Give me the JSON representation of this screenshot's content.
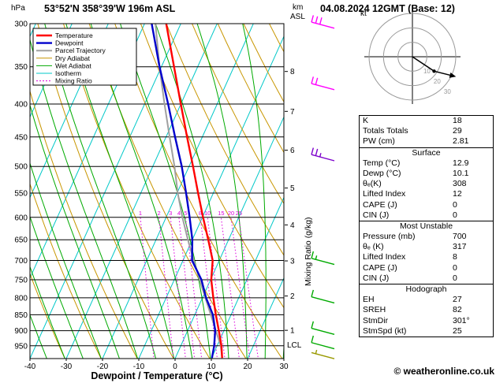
{
  "header": {
    "location": "53°52'N 358°39'W 196m ASL",
    "datetime": "04.08.2024 12GMT (Base: 12)",
    "pressure_unit": "hPa",
    "altitude_unit_line1": "km",
    "altitude_unit_line2": "ASL"
  },
  "chart_data": {
    "type": "skewt_logp_sounding",
    "x_axis_title": "Dewpoint / Temperature (°C)",
    "mixing_axis_title": "Mixing Ratio (g/kg)",
    "lcl_label": "LCL",
    "pressure_top_hpa": 300,
    "pressure_bottom_hpa": 1000,
    "pressure_ticks": [
      300,
      350,
      400,
      450,
      500,
      550,
      600,
      650,
      700,
      750,
      800,
      850,
      900,
      950
    ],
    "temp_ticks": [
      -40,
      -30,
      -20,
      -10,
      0,
      10,
      20,
      30
    ],
    "altitude_ticks_km": [
      1,
      2,
      3,
      4,
      5,
      6,
      7,
      8
    ],
    "isotherm_step_c": 10,
    "dry_adiabat_step_c": 10,
    "wet_adiabat_step_c": 5,
    "mixing_ratio_g_kg": [
      1,
      2,
      3,
      4,
      5,
      8,
      10,
      15,
      20,
      25
    ],
    "temperature_profile": [
      {
        "p": 992,
        "t": 12.9
      },
      {
        "p": 950,
        "t": 11.2
      },
      {
        "p": 900,
        "t": 8.6
      },
      {
        "p": 850,
        "t": 5.8
      },
      {
        "p": 800,
        "t": 3.0
      },
      {
        "p": 750,
        "t": 0.2
      },
      {
        "p": 700,
        "t": -1.8
      },
      {
        "p": 650,
        "t": -5.6
      },
      {
        "p": 600,
        "t": -9.8
      },
      {
        "p": 550,
        "t": -14.2
      },
      {
        "p": 500,
        "t": -18.9
      },
      {
        "p": 450,
        "t": -24.2
      },
      {
        "p": 400,
        "t": -30.0
      },
      {
        "p": 350,
        "t": -36.5
      },
      {
        "p": 300,
        "t": -44.0
      }
    ],
    "dewpoint_profile": [
      {
        "p": 992,
        "t": 10.1
      },
      {
        "p": 950,
        "t": 9.2
      },
      {
        "p": 900,
        "t": 7.6
      },
      {
        "p": 850,
        "t": 5.0
      },
      {
        "p": 800,
        "t": 1.0
      },
      {
        "p": 750,
        "t": -2.5
      },
      {
        "p": 700,
        "t": -7.5
      },
      {
        "p": 650,
        "t": -10.0
      },
      {
        "p": 600,
        "t": -13.5
      },
      {
        "p": 550,
        "t": -17.5
      },
      {
        "p": 500,
        "t": -22.0
      },
      {
        "p": 450,
        "t": -27.5
      },
      {
        "p": 400,
        "t": -33.5
      },
      {
        "p": 350,
        "t": -40.5
      },
      {
        "p": 300,
        "t": -48.0
      }
    ],
    "parcel_profile": [
      {
        "p": 992,
        "t": 12.9
      },
      {
        "p": 950,
        "t": 11.0
      },
      {
        "p": 900,
        "t": 7.8
      },
      {
        "p": 850,
        "t": 4.4
      },
      {
        "p": 800,
        "t": 0.8
      },
      {
        "p": 750,
        "t": -3.0
      },
      {
        "p": 700,
        "t": -7.0
      },
      {
        "p": 650,
        "t": -11.2
      },
      {
        "p": 600,
        "t": -15.5
      },
      {
        "p": 550,
        "t": -19.8
      },
      {
        "p": 500,
        "t": -24.0
      },
      {
        "p": 450,
        "t": -29.0
      },
      {
        "p": 400,
        "t": -34.5
      },
      {
        "p": 350,
        "t": -40.5
      },
      {
        "p": 300,
        "t": -47.0
      }
    ],
    "wind_barbs": [
      {
        "p": 305,
        "speed_kt": 30,
        "color": "#ff00ff"
      },
      {
        "p": 380,
        "speed_kt": 20,
        "color": "#ff00ff"
      },
      {
        "p": 490,
        "speed_kt": 25,
        "color": "#7d00cc"
      },
      {
        "p": 710,
        "speed_kt": 15,
        "color": "#00aa00"
      },
      {
        "p": 815,
        "speed_kt": 10,
        "color": "#00aa00"
      },
      {
        "p": 912,
        "speed_kt": 10,
        "color": "#00aa00"
      },
      {
        "p": 960,
        "speed_kt": 10,
        "color": "#00aa00"
      },
      {
        "p": 995,
        "speed_kt": 5,
        "color": "#999900"
      }
    ],
    "legend": [
      {
        "label": "Temperature",
        "color": "#ff0000",
        "width": 2.4
      },
      {
        "label": "Dewpoint",
        "color": "#0000cc",
        "width": 2.4
      },
      {
        "label": "Parcel Trajectory",
        "color": "#a0a0a0",
        "width": 2
      },
      {
        "label": "Dry Adiabat",
        "color": "#c89600",
        "width": 1
      },
      {
        "label": "Wet Adiabat",
        "color": "#00aa00",
        "width": 1
      },
      {
        "label": "Isotherm",
        "color": "#00c8c8",
        "width": 1
      },
      {
        "label": "Mixing Ratio",
        "color": "#dd00dd",
        "width": 1,
        "dash": "2 2"
      }
    ],
    "colors": {
      "temperature": "#ff0000",
      "dewpoint": "#0000cc",
      "parcel": "#a0a0a0",
      "dry_adiabat": "#c89600",
      "wet_adiabat": "#00aa00",
      "isotherm": "#00c8c8",
      "mixing_ratio": "#dd00dd",
      "grid": "#000000"
    }
  },
  "hodograph": {
    "unit_label": "kt",
    "rings_kt": [
      10,
      20,
      30
    ],
    "trace_kt": [
      [
        0,
        0
      ],
      [
        15,
        10
      ],
      [
        27,
        13
      ]
    ]
  },
  "stats": {
    "sections": [
      {
        "title": "",
        "rows": [
          [
            "K",
            "18"
          ],
          [
            "Totals Totals",
            "29"
          ],
          [
            "PW (cm)",
            "2.81"
          ]
        ]
      },
      {
        "title": "Surface",
        "rows": [
          [
            "Temp (°C)",
            "12.9"
          ],
          [
            "Dewp (°C)",
            "10.1"
          ],
          [
            "θₑ(K)",
            "308"
          ],
          [
            "Lifted Index",
            "12"
          ],
          [
            "CAPE (J)",
            "0"
          ],
          [
            "CIN (J)",
            "0"
          ]
        ]
      },
      {
        "title": "Most Unstable",
        "rows": [
          [
            "Pressure (mb)",
            "700"
          ],
          [
            "θₑ (K)",
            "317"
          ],
          [
            "Lifted Index",
            "8"
          ],
          [
            "CAPE (J)",
            "0"
          ],
          [
            "CIN (J)",
            "0"
          ]
        ]
      },
      {
        "title": "Hodograph",
        "rows": [
          [
            "EH",
            "27"
          ],
          [
            "SREH",
            "82"
          ],
          [
            "StmDir",
            "301°"
          ],
          [
            "StmSpd (kt)",
            "25"
          ]
        ]
      }
    ]
  },
  "footer": {
    "copyright": "© weatheronline.co.uk"
  }
}
